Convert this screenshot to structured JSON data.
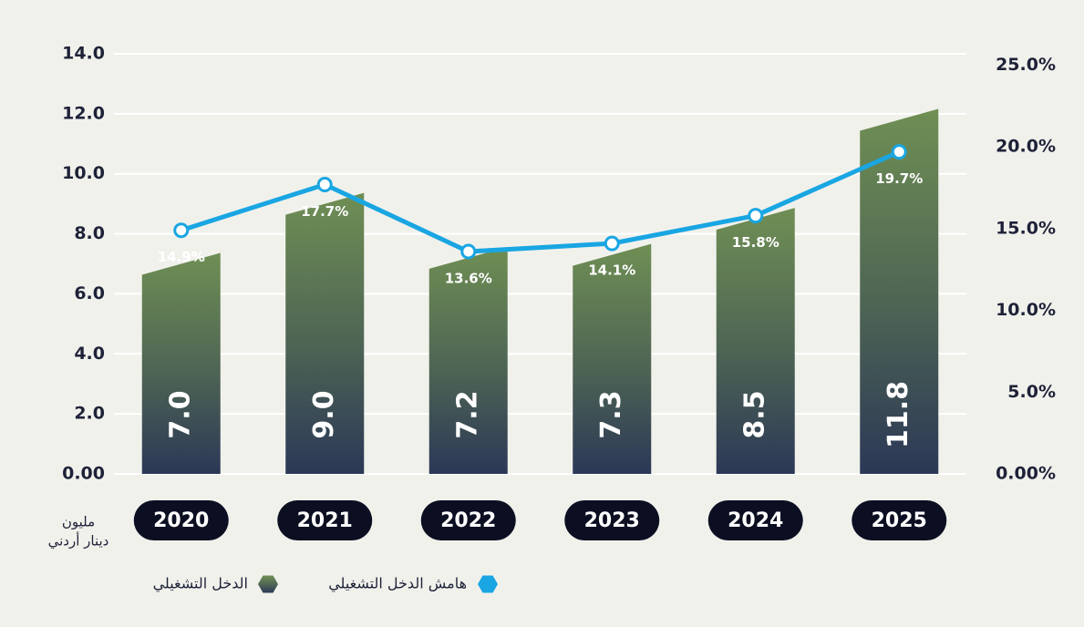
{
  "chart_data": {
    "type": "bar_line",
    "y_label": [
      "مليون",
      "دينار أردني"
    ],
    "categories": [
      "2020",
      "2021",
      "2022",
      "2023",
      "2024",
      "2025"
    ],
    "series": [
      {
        "name": "الدخل التشغيلي",
        "color": "#5f7d4e",
        "values": [
          7.0,
          9.0,
          7.2,
          7.3,
          8.5,
          11.8
        ],
        "value_labels": [
          "7.0",
          "9.0",
          "7.2",
          "7.3",
          "8.5",
          "11.8"
        ]
      },
      {
        "name": "هامش الدخل التشغيلي",
        "color": "#19a6e2",
        "axis": "y2",
        "values": [
          14.9,
          17.7,
          13.6,
          14.1,
          15.8,
          19.7
        ],
        "value_labels": [
          "14.9%",
          "17.7%",
          "13.6%",
          "14.1%",
          "15.8%",
          "19.7%"
        ]
      }
    ],
    "ylim": [
      0,
      14
    ],
    "yticks": [
      {
        "value": 0,
        "label": "0.00"
      },
      {
        "value": 2,
        "label": "2.0"
      },
      {
        "value": 4,
        "label": "4.0"
      },
      {
        "value": 6,
        "label": "6.0"
      },
      {
        "value": 8,
        "label": "8.0"
      },
      {
        "value": 10,
        "label": "10.0"
      },
      {
        "value": 12,
        "label": "12.0"
      },
      {
        "value": 14,
        "label": "14.0"
      }
    ],
    "y2lim": [
      0,
      25.7
    ],
    "y2ticks": [
      {
        "value": 0,
        "label": "0.00%"
      },
      {
        "value": 5,
        "label": "5.0%"
      },
      {
        "value": 10,
        "label": "10.0%"
      },
      {
        "value": 15,
        "label": "15.0%"
      },
      {
        "value": 20,
        "label": "20.0%"
      },
      {
        "value": 25,
        "label": "25.0%"
      }
    ],
    "grid": true
  }
}
